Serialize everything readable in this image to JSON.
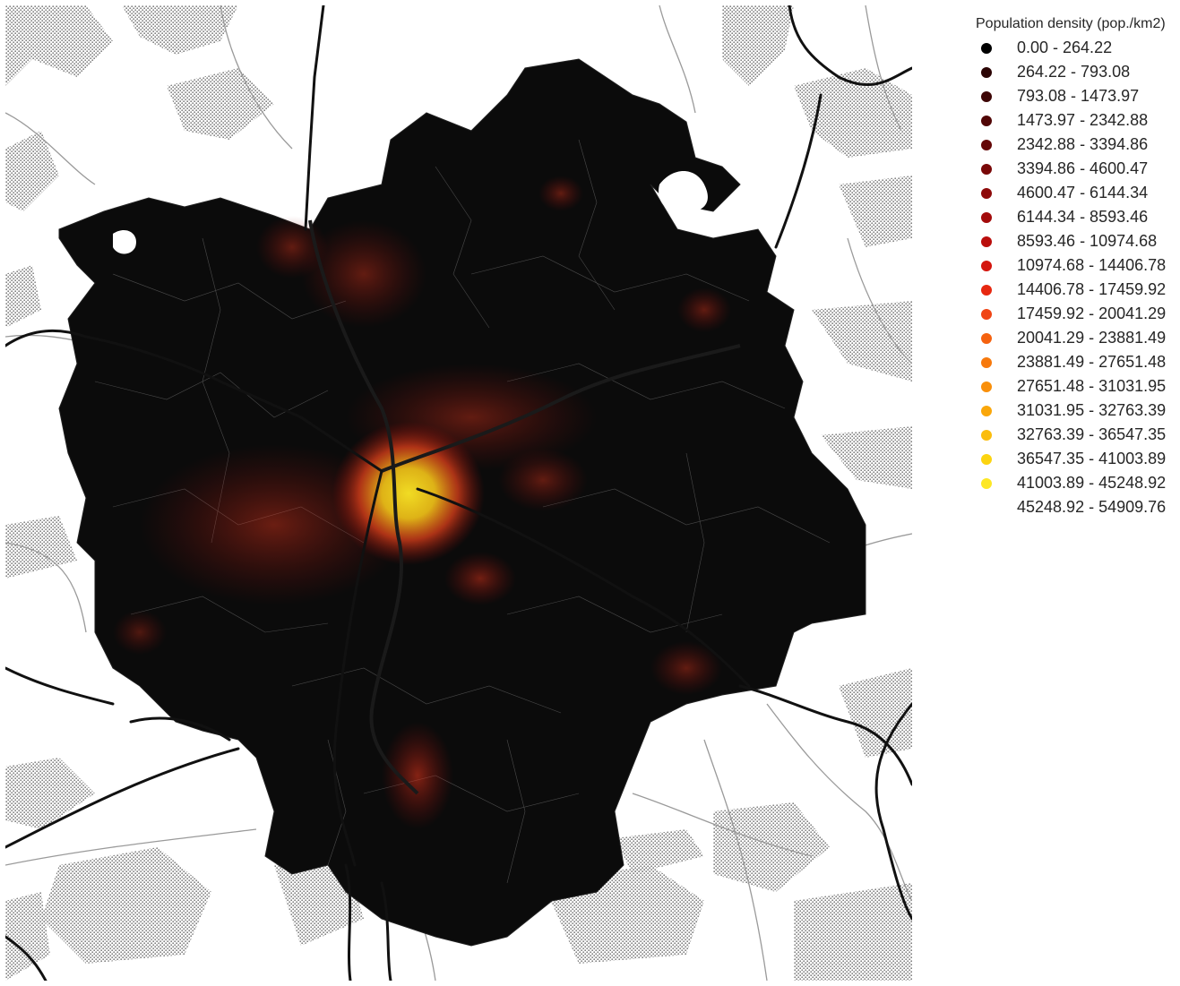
{
  "legend": {
    "title": "Population density (pop./km2)",
    "classes": [
      {
        "label": "0.00 - 264.22",
        "color": "#000000"
      },
      {
        "label": "264.22 - 793.08",
        "color": "#2b0404"
      },
      {
        "label": "793.08 - 1473.97",
        "color": "#3d0505"
      },
      {
        "label": "1473.97 - 2342.88",
        "color": "#510606"
      },
      {
        "label": "2342.88 - 3394.86",
        "color": "#640707"
      },
      {
        "label": "3394.86 - 4600.47",
        "color": "#790808"
      },
      {
        "label": "4600.47 - 6144.34",
        "color": "#8e0a0a"
      },
      {
        "label": "6144.34 - 8593.46",
        "color": "#a30b0b"
      },
      {
        "label": "8593.46 - 10974.68",
        "color": "#ba0e0c"
      },
      {
        "label": "10974.68 - 14406.78",
        "color": "#d4150d"
      },
      {
        "label": "14406.78 - 17459.92",
        "color": "#e72810"
      },
      {
        "label": "17459.92 - 20041.29",
        "color": "#f04515"
      },
      {
        "label": "20041.29 - 23881.49",
        "color": "#f5620f"
      },
      {
        "label": "23881.49 - 27651.48",
        "color": "#f7790c"
      },
      {
        "label": "27651.48 - 31031.95",
        "color": "#f98f0a"
      },
      {
        "label": "31031.95 - 32763.39",
        "color": "#faa70a"
      },
      {
        "label": "32763.39 - 36547.35",
        "color": "#fbbd0d"
      },
      {
        "label": "36547.35 - 41003.89",
        "color": "#fcd410"
      },
      {
        "label": "41003.89 - 45248.92",
        "color": "#fde725"
      },
      {
        "label": "45248.92 - 54909.76",
        "color": "#ffffff"
      }
    ]
  },
  "map": {
    "region_fill": "#0b0b0b",
    "boundary_color": "#6a6a6a",
    "road_color": "#111111",
    "minor_road_color": "#9a9a9a",
    "forest_pattern_color": "#7a7a7a"
  }
}
